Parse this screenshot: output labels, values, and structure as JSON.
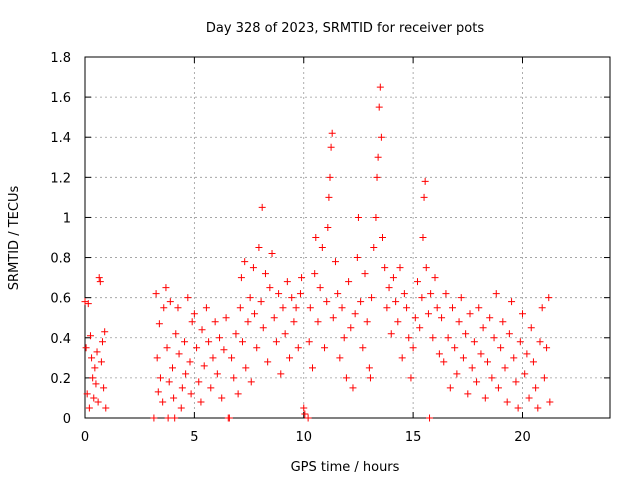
{
  "chart_data": {
    "type": "scatter",
    "title": "Day 328 of 2023, SRMTID for receiver pots",
    "xlabel": "GPS time / hours",
    "ylabel": "SRMTID / TECUs",
    "xlim": [
      0,
      24
    ],
    "ylim": [
      0,
      1.8
    ],
    "x_ticks": [
      0,
      5,
      10,
      15,
      20
    ],
    "x_tick_labels": [
      "0",
      "5",
      "10",
      "15",
      "20"
    ],
    "y_ticks": [
      0,
      0.2,
      0.4,
      0.6,
      0.8,
      1.0,
      1.2,
      1.4,
      1.6,
      1.8
    ],
    "y_tick_labels": [
      "0",
      "0.2",
      "0.4",
      "0.6",
      "0.8",
      "1",
      "1.2",
      "1.4",
      "1.6",
      "1.8"
    ],
    "grid": true,
    "marker": "plus",
    "marker_color": "#ff0000",
    "series": [
      {
        "name": "SRMTID",
        "color": "#ff0000",
        "points": [
          [
            0.0,
            0.58
          ],
          [
            0.05,
            0.35
          ],
          [
            0.1,
            0.12
          ],
          [
            0.15,
            0.57
          ],
          [
            0.2,
            0.05
          ],
          [
            0.25,
            0.41
          ],
          [
            0.3,
            0.3
          ],
          [
            0.35,
            0.2
          ],
          [
            0.4,
            0.1
          ],
          [
            0.45,
            0.25
          ],
          [
            0.5,
            0.17
          ],
          [
            0.55,
            0.33
          ],
          [
            0.6,
            0.08
          ],
          [
            0.65,
            0.7
          ],
          [
            0.7,
            0.68
          ],
          [
            0.75,
            0.28
          ],
          [
            0.8,
            0.38
          ],
          [
            0.85,
            0.15
          ],
          [
            0.9,
            0.43
          ],
          [
            0.95,
            0.05
          ],
          [
            3.15,
            0.0
          ],
          [
            3.25,
            0.62
          ],
          [
            3.3,
            0.3
          ],
          [
            3.35,
            0.13
          ],
          [
            3.4,
            0.47
          ],
          [
            3.45,
            0.2
          ],
          [
            3.55,
            0.08
          ],
          [
            3.6,
            0.55
          ],
          [
            3.7,
            0.65
          ],
          [
            3.75,
            0.35
          ],
          [
            3.8,
            0.0
          ],
          [
            3.85,
            0.18
          ],
          [
            3.9,
            0.58
          ],
          [
            4.0,
            0.25
          ],
          [
            4.05,
            0.1
          ],
          [
            4.1,
            0.0
          ],
          [
            4.15,
            0.42
          ],
          [
            4.25,
            0.55
          ],
          [
            4.3,
            0.32
          ],
          [
            4.4,
            0.05
          ],
          [
            4.45,
            0.15
          ],
          [
            4.55,
            0.38
          ],
          [
            4.6,
            0.22
          ],
          [
            4.7,
            0.6
          ],
          [
            4.8,
            0.28
          ],
          [
            4.85,
            0.12
          ],
          [
            4.9,
            0.48
          ],
          [
            5.0,
            0.52
          ],
          [
            5.1,
            0.35
          ],
          [
            5.2,
            0.18
          ],
          [
            5.3,
            0.08
          ],
          [
            5.35,
            0.44
          ],
          [
            5.45,
            0.26
          ],
          [
            5.55,
            0.55
          ],
          [
            5.65,
            0.38
          ],
          [
            5.75,
            0.15
          ],
          [
            5.85,
            0.3
          ],
          [
            5.95,
            0.48
          ],
          [
            6.05,
            0.22
          ],
          [
            6.15,
            0.4
          ],
          [
            6.25,
            0.1
          ],
          [
            6.35,
            0.34
          ],
          [
            6.45,
            0.5
          ],
          [
            6.55,
            0.0
          ],
          [
            6.6,
            0.0
          ],
          [
            6.7,
            0.3
          ],
          [
            6.8,
            0.2
          ],
          [
            6.9,
            0.42
          ],
          [
            7.0,
            0.12
          ],
          [
            7.1,
            0.55
          ],
          [
            7.15,
            0.7
          ],
          [
            7.2,
            0.38
          ],
          [
            7.3,
            0.78
          ],
          [
            7.35,
            0.25
          ],
          [
            7.45,
            0.48
          ],
          [
            7.55,
            0.6
          ],
          [
            7.6,
            0.18
          ],
          [
            7.7,
            0.75
          ],
          [
            7.75,
            0.52
          ],
          [
            7.85,
            0.35
          ],
          [
            7.95,
            0.85
          ],
          [
            8.05,
            0.58
          ],
          [
            8.1,
            1.05
          ],
          [
            8.15,
            0.45
          ],
          [
            8.25,
            0.72
          ],
          [
            8.35,
            0.28
          ],
          [
            8.45,
            0.65
          ],
          [
            8.55,
            0.82
          ],
          [
            8.65,
            0.5
          ],
          [
            8.75,
            0.38
          ],
          [
            8.85,
            0.62
          ],
          [
            8.95,
            0.22
          ],
          [
            9.05,
            0.55
          ],
          [
            9.15,
            0.42
          ],
          [
            9.25,
            0.68
          ],
          [
            9.35,
            0.3
          ],
          [
            9.45,
            0.6
          ],
          [
            9.55,
            0.48
          ],
          [
            9.65,
            0.55
          ],
          [
            9.75,
            0.35
          ],
          [
            9.85,
            0.62
          ],
          [
            9.9,
            0.7
          ],
          [
            10.0,
            0.05
          ],
          [
            10.05,
            0.02
          ],
          [
            10.2,
            0.0
          ],
          [
            10.25,
            0.38
          ],
          [
            10.3,
            0.55
          ],
          [
            10.4,
            0.25
          ],
          [
            10.5,
            0.72
          ],
          [
            10.55,
            0.9
          ],
          [
            10.65,
            0.48
          ],
          [
            10.75,
            0.65
          ],
          [
            10.85,
            0.85
          ],
          [
            10.95,
            0.35
          ],
          [
            11.05,
            0.58
          ],
          [
            11.1,
            0.95
          ],
          [
            11.15,
            1.1
          ],
          [
            11.2,
            1.2
          ],
          [
            11.25,
            1.35
          ],
          [
            11.3,
            1.42
          ],
          [
            11.35,
            0.5
          ],
          [
            11.45,
            0.78
          ],
          [
            11.55,
            0.62
          ],
          [
            11.65,
            0.3
          ],
          [
            11.75,
            0.55
          ],
          [
            11.85,
            0.4
          ],
          [
            11.95,
            0.2
          ],
          [
            12.05,
            0.68
          ],
          [
            12.15,
            0.45
          ],
          [
            12.25,
            0.15
          ],
          [
            12.35,
            0.52
          ],
          [
            12.45,
            0.8
          ],
          [
            12.5,
            1.0
          ],
          [
            12.6,
            0.58
          ],
          [
            12.7,
            0.35
          ],
          [
            12.8,
            0.72
          ],
          [
            12.9,
            0.48
          ],
          [
            13.0,
            0.25
          ],
          [
            13.05,
            0.2
          ],
          [
            13.1,
            0.6
          ],
          [
            13.2,
            0.85
          ],
          [
            13.3,
            1.0
          ],
          [
            13.35,
            1.2
          ],
          [
            13.4,
            1.3
          ],
          [
            13.45,
            1.55
          ],
          [
            13.5,
            1.65
          ],
          [
            13.55,
            1.4
          ],
          [
            13.6,
            0.9
          ],
          [
            13.7,
            0.75
          ],
          [
            13.8,
            0.55
          ],
          [
            13.9,
            0.65
          ],
          [
            14.0,
            0.42
          ],
          [
            14.1,
            0.7
          ],
          [
            14.2,
            0.58
          ],
          [
            14.3,
            0.48
          ],
          [
            14.4,
            0.75
          ],
          [
            14.5,
            0.3
          ],
          [
            14.6,
            0.62
          ],
          [
            14.7,
            0.55
          ],
          [
            14.8,
            0.4
          ],
          [
            14.9,
            0.2
          ],
          [
            15.0,
            0.35
          ],
          [
            15.1,
            0.5
          ],
          [
            15.2,
            0.68
          ],
          [
            15.3,
            0.45
          ],
          [
            15.4,
            0.6
          ],
          [
            15.45,
            0.9
          ],
          [
            15.5,
            1.1
          ],
          [
            15.55,
            1.18
          ],
          [
            15.6,
            0.75
          ],
          [
            15.7,
            0.52
          ],
          [
            15.75,
            0.0
          ],
          [
            15.8,
            0.62
          ],
          [
            15.9,
            0.4
          ],
          [
            16.0,
            0.7
          ],
          [
            16.1,
            0.55
          ],
          [
            16.2,
            0.32
          ],
          [
            16.3,
            0.5
          ],
          [
            16.4,
            0.28
          ],
          [
            16.5,
            0.62
          ],
          [
            16.6,
            0.4
          ],
          [
            16.7,
            0.15
          ],
          [
            16.8,
            0.55
          ],
          [
            16.9,
            0.35
          ],
          [
            17.0,
            0.22
          ],
          [
            17.1,
            0.48
          ],
          [
            17.2,
            0.6
          ],
          [
            17.3,
            0.3
          ],
          [
            17.4,
            0.42
          ],
          [
            17.5,
            0.12
          ],
          [
            17.6,
            0.52
          ],
          [
            17.7,
            0.25
          ],
          [
            17.8,
            0.38
          ],
          [
            17.9,
            0.18
          ],
          [
            18.0,
            0.55
          ],
          [
            18.1,
            0.32
          ],
          [
            18.2,
            0.45
          ],
          [
            18.3,
            0.1
          ],
          [
            18.4,
            0.28
          ],
          [
            18.5,
            0.5
          ],
          [
            18.6,
            0.2
          ],
          [
            18.7,
            0.4
          ],
          [
            18.8,
            0.62
          ],
          [
            18.9,
            0.15
          ],
          [
            19.0,
            0.35
          ],
          [
            19.1,
            0.48
          ],
          [
            19.2,
            0.25
          ],
          [
            19.3,
            0.08
          ],
          [
            19.4,
            0.42
          ],
          [
            19.5,
            0.58
          ],
          [
            19.6,
            0.3
          ],
          [
            19.7,
            0.18
          ],
          [
            19.8,
            0.05
          ],
          [
            19.9,
            0.38
          ],
          [
            20.0,
            0.52
          ],
          [
            20.1,
            0.22
          ],
          [
            20.2,
            0.32
          ],
          [
            20.3,
            0.1
          ],
          [
            20.4,
            0.45
          ],
          [
            20.5,
            0.28
          ],
          [
            20.6,
            0.15
          ],
          [
            20.7,
            0.05
          ],
          [
            20.8,
            0.38
          ],
          [
            20.9,
            0.55
          ],
          [
            21.0,
            0.2
          ],
          [
            21.1,
            0.35
          ],
          [
            21.2,
            0.6
          ],
          [
            21.25,
            0.08
          ]
        ]
      }
    ]
  }
}
